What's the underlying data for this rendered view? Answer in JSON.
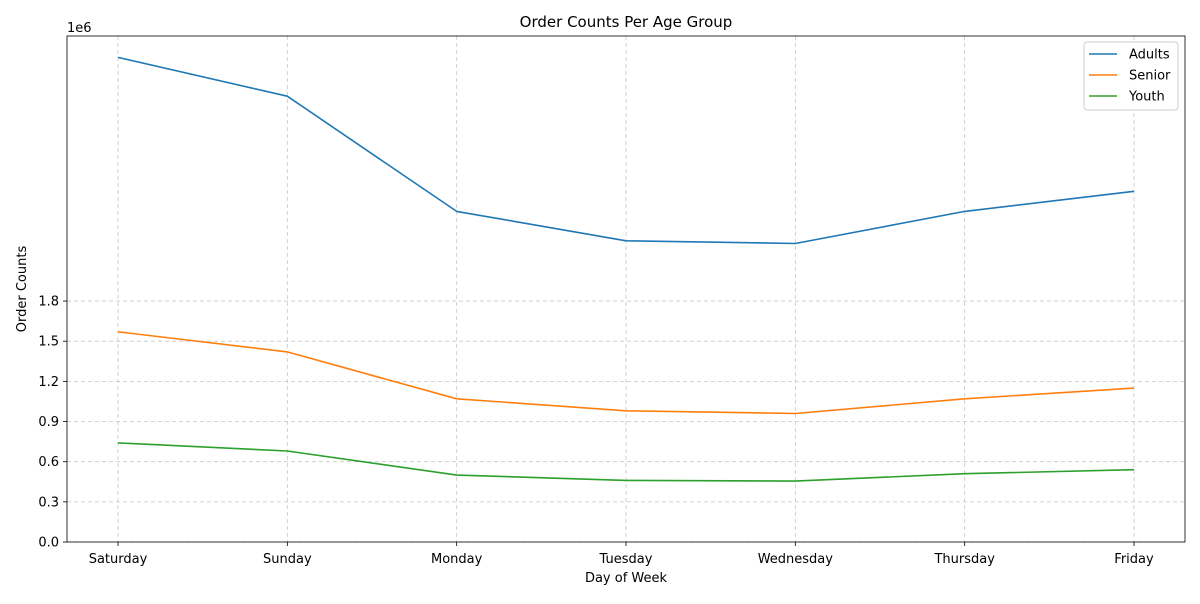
{
  "chart_data": {
    "type": "line",
    "title": "Order Counts Per Age Group",
    "xlabel": "Day of Week",
    "ylabel": "Order Counts",
    "offset_label": "1e6",
    "categories": [
      "Saturday",
      "Sunday",
      "Monday",
      "Tuesday",
      "Wednesday",
      "Thursday",
      "Friday"
    ],
    "yticks": [
      "0.0",
      "0.3",
      "0.6",
      "0.9",
      "1.2",
      "1.5",
      "1.8"
    ],
    "ylim": [
      0,
      3.78
    ],
    "grid": true,
    "legend_position": "top-right",
    "series": [
      {
        "name": "Adults",
        "color": "#1f77b4",
        "values": [
          3.62,
          3.33,
          2.47,
          2.25,
          2.23,
          2.47,
          2.62
        ]
      },
      {
        "name": "Senior",
        "color": "#ff7f0e",
        "values": [
          1.57,
          1.42,
          1.07,
          0.98,
          0.96,
          1.07,
          1.15
        ]
      },
      {
        "name": "Youth",
        "color": "#2ca02c",
        "values": [
          0.74,
          0.68,
          0.5,
          0.46,
          0.455,
          0.51,
          0.54
        ]
      }
    ]
  }
}
